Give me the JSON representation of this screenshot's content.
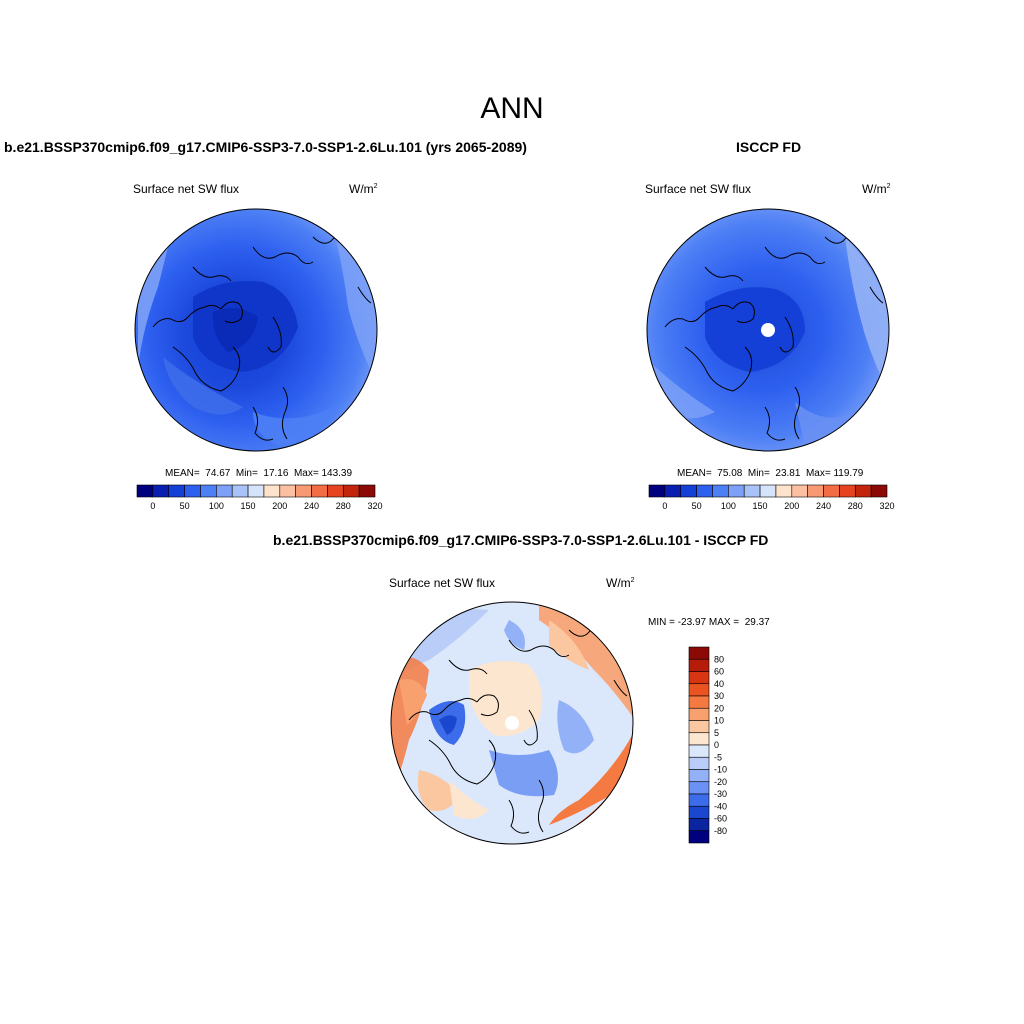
{
  "title": "ANN",
  "panels": {
    "left": {
      "title": "b.e21.BSSP370cmip6.f09_g17.CMIP6-SSP3-7.0-SSP1-2.6Lu.101 (yrs 2065-2089)",
      "variable": "Surface net SW flux",
      "units": "W/m",
      "units_sup": "2",
      "stats": "MEAN=  74.67  Min=  17.16  Max= 143.39"
    },
    "right": {
      "title": "ISCCP FD",
      "variable": "Surface net SW flux",
      "units": "W/m",
      "units_sup": "2",
      "stats": "MEAN=  75.08  Min=  23.81  Max= 119.79"
    },
    "diff": {
      "title": "b.e21.BSSP370cmip6.f09_g17.CMIP6-SSP3-7.0-SSP1-2.6Lu.101 - ISCCP FD",
      "variable": "Surface net SW flux",
      "units": "W/m",
      "units_sup": "2",
      "stats": "MIN = -23.97 MAX =  29.37"
    }
  },
  "colorbar_abs": {
    "ticks": [
      "0",
      "50",
      "100",
      "150",
      "200",
      "240",
      "280",
      "320"
    ],
    "colors": [
      "#00007f",
      "#0a1fb0",
      "#1440d8",
      "#2e60f0",
      "#4d7ff5",
      "#7da1f7",
      "#a9c3f9",
      "#d6e4fb",
      "#fde2cc",
      "#fbc0a2",
      "#f79a73",
      "#f26d43",
      "#e64420",
      "#c3240c",
      "#8c0a05"
    ]
  },
  "colorbar_diff": {
    "labels": [
      "80",
      "60",
      "40",
      "30",
      "20",
      "10",
      "5",
      "0",
      "-5",
      "-10",
      "-20",
      "-30",
      "-40",
      "-60",
      "-80"
    ],
    "colors": [
      "#8c0a05",
      "#b71c0a",
      "#d83513",
      "#ea5421",
      "#f47a42",
      "#f8a06e",
      "#fbc7a0",
      "#fde6d0",
      "#dbe7fb",
      "#b9cdf8",
      "#93b1f6",
      "#6a91f3",
      "#3d6cea",
      "#1b47cf",
      "#0b25a0",
      "#00007f"
    ]
  },
  "chart_data": [
    {
      "type": "heatmap",
      "projection": "north polar stereographic",
      "title": "b.e21.BSSP370cmip6.f09_g17.CMIP6-SSP3-7.0-SSP1-2.6Lu.101 (yrs 2065-2089)",
      "variable": "Surface net SW flux",
      "units": "W/m2",
      "stats": {
        "mean": 74.67,
        "min": 17.16,
        "max": 143.39
      },
      "colorbar_ticks": [
        0,
        50,
        100,
        150,
        200,
        240,
        280,
        320
      ]
    },
    {
      "type": "heatmap",
      "projection": "north polar stereographic",
      "title": "ISCCP FD",
      "variable": "Surface net SW flux",
      "units": "W/m2",
      "stats": {
        "mean": 75.08,
        "min": 23.81,
        "max": 119.79
      },
      "colorbar_ticks": [
        0,
        50,
        100,
        150,
        200,
        240,
        280,
        320
      ]
    },
    {
      "type": "heatmap",
      "projection": "north polar stereographic",
      "title": "b.e21.BSSP370cmip6.f09_g17.CMIP6-SSP3-7.0-SSP1-2.6Lu.101 - ISCCP FD",
      "variable": "Surface net SW flux",
      "units": "W/m2",
      "stats": {
        "min": -23.97,
        "max": 29.37
      },
      "colorbar_levels": [
        -80,
        -60,
        -40,
        -30,
        -20,
        -10,
        -5,
        0,
        5,
        10,
        20,
        30,
        40,
        60,
        80
      ]
    }
  ]
}
